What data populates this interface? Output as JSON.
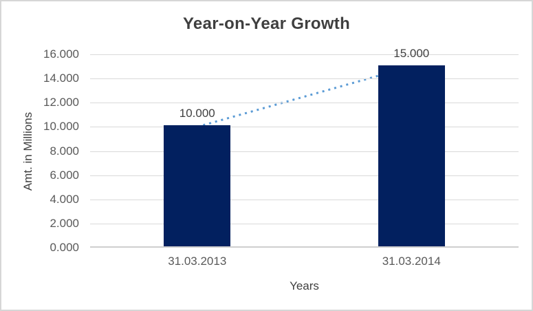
{
  "chart": {
    "title": "Year-on-Year Growth",
    "x_axis_title": "Years",
    "y_axis_title": "Amt. in Millions"
  },
  "chart_data": {
    "type": "bar",
    "title": "Year-on-Year Growth",
    "xlabel": "Years",
    "ylabel": "Amt. in Millions",
    "categories": [
      "31.03.2013",
      "31.03.2014"
    ],
    "values": [
      10,
      15
    ],
    "data_labels": [
      "10.000",
      "15.000"
    ],
    "y_ticks": [
      "16.000",
      "14.000",
      "12.000",
      "10.000",
      "8.000",
      "6.000",
      "4.000",
      "2.000",
      "0.000"
    ],
    "ylim": [
      0,
      16
    ],
    "y_step": 2,
    "grid": true,
    "legend": "none",
    "trendline": {
      "style": "dotted",
      "from_value": 10,
      "to_value": 15
    },
    "colors": {
      "bar": "#02205f",
      "trendline": "#5b9bd5",
      "gridline": "#d9d9d9",
      "axis_line": "#cfcfcf",
      "title_text": "#3f3f3f",
      "tick_text": "#595959",
      "label_text": "#404040"
    }
  }
}
